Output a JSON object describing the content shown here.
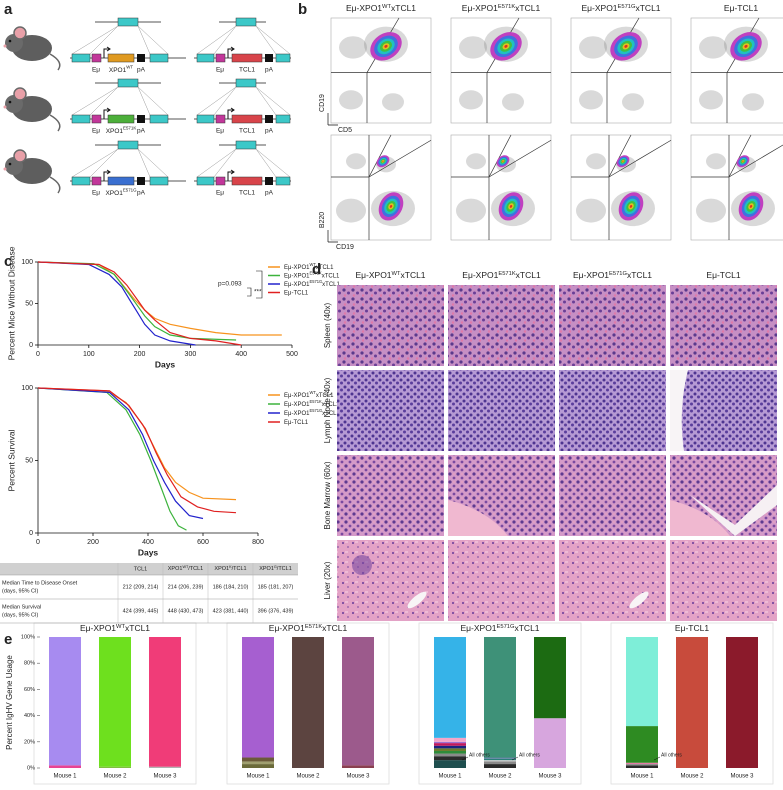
{
  "panel_labels": [
    "a",
    "b",
    "c",
    "d",
    "e"
  ],
  "construct": {
    "promoter": "Eμ",
    "polyA": "pA",
    "rows": [
      {
        "xpo1": {
          "text": "XPO1",
          "sup": "WT"
        },
        "tcl1": "TCL1"
      },
      {
        "xpo1": {
          "text": "XPO1",
          "sup": "E571K"
        },
        "tcl1": "TCL1"
      },
      {
        "xpo1": {
          "text": "XPO1",
          "sup": "E571G"
        },
        "tcl1": "TCL1"
      }
    ]
  },
  "flow": {
    "columns": [
      {
        "text": "Eμ-XPO1",
        "sup": "WT",
        "tail": "xTCL1"
      },
      {
        "text": "Eμ-XPO1",
        "sup": "E571K",
        "tail": "xTCL1"
      },
      {
        "text": "Eμ-XPO1",
        "sup": "E571G",
        "tail": "xTCL1"
      },
      {
        "text": "Eμ-TCL1"
      }
    ],
    "rows": [
      {
        "ylabel": "CD19",
        "xlabel": "CD5"
      },
      {
        "ylabel": "B220",
        "xlabel": "CD19"
      }
    ]
  },
  "chart_data": [
    {
      "type": "line",
      "ylabel": "Percent Mice Without Disease",
      "xlabel": "Days",
      "xlim": [
        0,
        500
      ],
      "ylim": [
        0,
        100
      ],
      "xticks": [
        0,
        100,
        200,
        300,
        400,
        500
      ],
      "yticks": [
        0,
        50,
        100
      ],
      "legend": "upper right",
      "annotations": [
        "p=0.093",
        "***"
      ],
      "series": [
        {
          "name": {
            "text": "Eμ-XPO1",
            "sup": "WT",
            "tail": "xTCL1"
          },
          "color": "#f7931e",
          "x": [
            0,
            120,
            150,
            170,
            190,
            210,
            230,
            260,
            300,
            350,
            400,
            480
          ],
          "values": [
            100,
            97,
            85,
            70,
            55,
            42,
            32,
            25,
            20,
            15,
            12,
            12
          ]
        },
        {
          "name": {
            "text": "Eμ-XPO1",
            "sup": "E571K",
            "tail": "xTCL1"
          },
          "color": "#3cb33c",
          "x": [
            0,
            110,
            150,
            175,
            195,
            210,
            230,
            260,
            300,
            390
          ],
          "values": [
            100,
            98,
            85,
            65,
            48,
            35,
            22,
            12,
            8,
            6
          ]
        },
        {
          "name": {
            "text": "Eμ-XPO1",
            "sup": "E571G",
            "tail": "xTCL1"
          },
          "color": "#2222cc",
          "x": [
            0,
            100,
            140,
            165,
            180,
            195,
            210,
            230,
            260,
            310
          ],
          "values": [
            100,
            97,
            85,
            70,
            55,
            40,
            25,
            12,
            5,
            0
          ]
        },
        {
          "name": {
            "text": "Eμ-TCL1"
          },
          "color": "#e02020",
          "x": [
            0,
            120,
            150,
            175,
            195,
            210,
            230,
            260,
            300,
            350,
            400
          ],
          "values": [
            100,
            97,
            88,
            72,
            55,
            42,
            30,
            15,
            8,
            5,
            0
          ]
        }
      ]
    },
    {
      "type": "line",
      "ylabel": "Percent Survival",
      "xlabel": "Days",
      "xlim": [
        0,
        800
      ],
      "ylim": [
        0,
        100
      ],
      "xticks": [
        0,
        200,
        400,
        600,
        800
      ],
      "yticks": [
        0,
        50,
        100
      ],
      "legend": "upper right",
      "series": [
        {
          "name": {
            "text": "Eμ-XPO1",
            "sup": "WT",
            "tail": "xTCL1"
          },
          "color": "#f7931e",
          "x": [
            0,
            250,
            320,
            380,
            420,
            460,
            500,
            550,
            600,
            720
          ],
          "values": [
            100,
            98,
            90,
            75,
            60,
            45,
            35,
            28,
            24,
            23
          ]
        },
        {
          "name": {
            "text": "Eμ-XPO1",
            "sup": "E571K",
            "tail": "xTCL1"
          },
          "color": "#3cb33c",
          "x": [
            0,
            250,
            320,
            370,
            410,
            450,
            480,
            510,
            540
          ],
          "values": [
            100,
            97,
            85,
            68,
            50,
            30,
            15,
            5,
            2
          ]
        },
        {
          "name": {
            "text": "Eμ-XPO1",
            "sup": "E571G",
            "tail": "xTCL1"
          },
          "color": "#2222cc",
          "x": [
            0,
            260,
            330,
            380,
            420,
            460,
            500,
            550,
            600
          ],
          "values": [
            100,
            97,
            85,
            68,
            50,
            35,
            22,
            12,
            10
          ]
        },
        {
          "name": {
            "text": "Eμ-TCL1"
          },
          "color": "#e02020",
          "x": [
            0,
            260,
            330,
            390,
            430,
            470,
            520,
            580,
            640,
            720
          ],
          "values": [
            100,
            98,
            88,
            72,
            55,
            40,
            25,
            18,
            15,
            14
          ]
        }
      ]
    },
    {
      "type": "stacked_bar",
      "title": {
        "text": "Eμ-XPO1",
        "sup": "WT",
        "tail": "xTCL1"
      },
      "ylabel": "Percent IgHV Gene Usage",
      "ylim": [
        0,
        100
      ],
      "yticks": [
        {
          "value": 0,
          "label": "0%"
        },
        {
          "value": 20,
          "label": "20%"
        },
        {
          "value": 40,
          "label": "40%"
        },
        {
          "value": 60,
          "label": "60%"
        },
        {
          "value": 80,
          "label": "80%"
        },
        {
          "value": 100,
          "label": "100%"
        }
      ],
      "categories": [
        "Mouse 1",
        "Mouse 2",
        "Mouse 3"
      ],
      "stacks": [
        [
          {
            "color": "#e84393",
            "value": 2
          },
          {
            "color": "#a78bf0",
            "value": 98
          }
        ],
        [
          {
            "color": "#7fbf3f",
            "value": 1
          },
          {
            "color": "#6ee01e",
            "value": 99
          }
        ],
        [
          {
            "color": "#b0b0b0",
            "value": 1
          },
          {
            "color": "#f03c78",
            "value": 99
          }
        ]
      ]
    },
    {
      "type": "stacked_bar",
      "title": {
        "text": "Eμ-XPO1",
        "sup": "E571K",
        "tail": "xTCL1"
      },
      "ylim": [
        0,
        100
      ],
      "categories": [
        "Mouse 1",
        "Mouse 2",
        "Mouse 3"
      ],
      "stacks": [
        [
          {
            "color": "#6b6b3a",
            "value": 3
          },
          {
            "color": "#a0a070",
            "value": 2
          },
          {
            "color": "#6b5a3a",
            "value": 3
          },
          {
            "color": "#a65fd0",
            "value": 92
          }
        ],
        [
          {
            "color": "#5c4440",
            "value": 100
          }
        ],
        [
          {
            "color": "#8a4050",
            "value": 2
          },
          {
            "color": "#9c5a8c",
            "value": 98
          }
        ]
      ]
    },
    {
      "type": "stacked_bar",
      "title": {
        "text": "Eμ-XPO1",
        "sup": "E571G",
        "tail": "xTCL1"
      },
      "ylim": [
        0,
        100
      ],
      "categories": [
        "Mouse 1",
        "Mouse 2",
        "Mouse 3"
      ],
      "annotations": [
        "All others",
        "All others"
      ],
      "stacks": [
        [
          {
            "color": "#1f4f4f",
            "value": 6
          },
          {
            "color": "#2b2b2b",
            "value": 3
          },
          {
            "color": "#8a8a8a",
            "value": 2
          },
          {
            "color": "#2e8b3a",
            "value": 2
          },
          {
            "color": "#6b7a2a",
            "value": 2
          },
          {
            "color": "#1a237e",
            "value": 2
          },
          {
            "color": "#c2185b",
            "value": 2
          },
          {
            "color": "#9c6fd0",
            "value": 1
          },
          {
            "color": "#f3a6c8",
            "value": 3
          },
          {
            "color": "#35b3e8",
            "value": 77
          }
        ],
        [
          {
            "color": "#2b2b2b",
            "value": 3
          },
          {
            "color": "#8a8a8a",
            "value": 2
          },
          {
            "color": "#cfcfcf",
            "value": 1
          },
          {
            "color": "#2a7f7a",
            "value": 1
          },
          {
            "color": "#5b7fa0",
            "value": 1
          },
          {
            "color": "#3e9178",
            "value": 92
          }
        ],
        [
          {
            "color": "#d7a6de",
            "value": 38
          },
          {
            "color": "#1c6b12",
            "value": 62
          }
        ]
      ]
    },
    {
      "type": "stacked_bar",
      "title": {
        "text": "Eμ-TCL1"
      },
      "ylim": [
        0,
        100
      ],
      "categories": [
        "Mouse 1",
        "Mouse 2",
        "Mouse 3"
      ],
      "annotations": [
        "All others"
      ],
      "stacks": [
        [
          {
            "color": "#2b2b2b",
            "value": 2
          },
          {
            "color": "#8a8a8a",
            "value": 1
          },
          {
            "color": "#e57aa6",
            "value": 1
          },
          {
            "color": "#2e8b22",
            "value": 28
          },
          {
            "color": "#7eeed8",
            "value": 68
          }
        ],
        [
          {
            "color": "#c84b3c",
            "value": 100
          }
        ],
        [
          {
            "color": "#8b1a2b",
            "value": 100
          }
        ]
      ]
    }
  ],
  "table": {
    "header": [
      "TCL1",
      {
        "text": "XPO1",
        "sup": "WT",
        "tail": "/TCL1"
      },
      {
        "text": "XPO1",
        "sup": "K",
        "tail": "/TCL1"
      },
      {
        "text": "XPO1",
        "sup": "G",
        "tail": "/TCL1"
      }
    ],
    "rows": [
      {
        "label": [
          "Median Time to Disease Onset",
          "(days, 95% CI)"
        ],
        "cells": [
          "212 (209, 214)",
          "214 (206, 239)",
          "186 (184, 210)",
          "185 (181, 207)"
        ]
      },
      {
        "label": [
          "Median Survival",
          "(days, 95% CI)"
        ],
        "cells": [
          "424 (399, 445)",
          "448 (430, 473)",
          "423 (381, 440)",
          "396 (376, 439)"
        ]
      }
    ]
  },
  "histology": {
    "columns": [
      {
        "text": "Eμ-XPO1",
        "sup": "WT",
        "tail": "xTCL1"
      },
      {
        "text": "Eμ-XPO1",
        "sup": "E571K",
        "tail": "xTCL1"
      },
      {
        "text": "Eμ-XPO1",
        "sup": "E571G",
        "tail": "xTCL1"
      },
      {
        "text": "Eμ-TCL1"
      }
    ],
    "rows": [
      "Spleen (40x)",
      "Lymph Node (40x)",
      "Bone Marrow (60x)",
      "Liver (20x)"
    ]
  }
}
